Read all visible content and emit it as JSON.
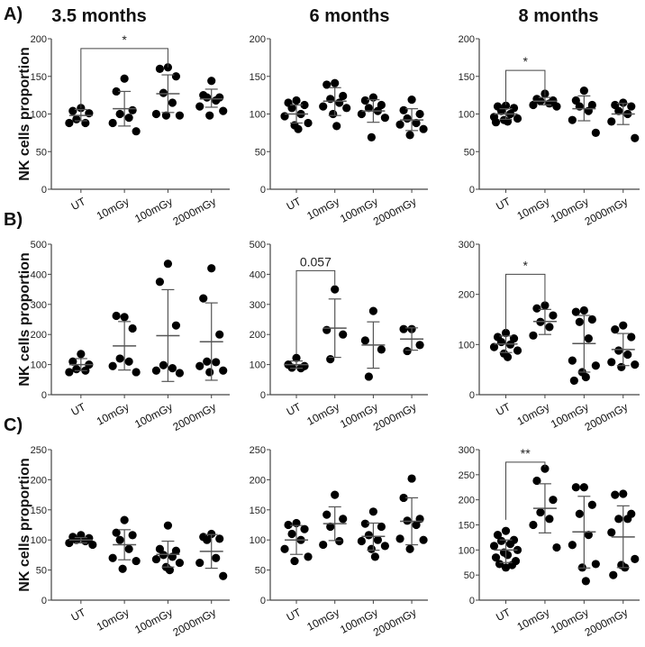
{
  "column_titles": [
    "3.5 months",
    "6 months",
    "8 months"
  ],
  "row_labels": [
    "A)",
    "B)",
    "C)"
  ],
  "ylabel": "NK cells proportion",
  "colors": {
    "dot": "#000000",
    "axis": "#444444",
    "errorbar": "#555555"
  },
  "chart_data": [
    {
      "type": "scatter",
      "panel": "A-3.5 months",
      "categories": [
        "UT",
        "10mGy",
        "100mGy",
        "2000mGy"
      ],
      "ylim": [
        0,
        200
      ],
      "yticks": [
        0,
        50,
        100,
        150,
        200
      ],
      "groups": [
        {
          "points": [
            108,
            104,
            101,
            93,
            88,
            88
          ],
          "mean": 98,
          "err": [
            91,
            106
          ]
        },
        {
          "points": [
            147,
            130,
            105,
            100,
            95,
            88,
            77
          ],
          "mean": 107,
          "err": [
            84,
            130
          ]
        },
        {
          "points": [
            162,
            160,
            150,
            128,
            115,
            100,
            98,
            98
          ],
          "mean": 127,
          "err": [
            102,
            152
          ]
        },
        {
          "points": [
            144,
            125,
            122,
            122,
            118,
            110,
            104,
            98
          ],
          "mean": 120,
          "err": [
            109,
            133
          ]
        }
      ],
      "significance": {
        "from": 0,
        "to": 2,
        "label": "*",
        "bracket_y": 187,
        "left_y": 108,
        "right_y": 162
      }
    },
    {
      "type": "scatter",
      "panel": "A-6 months",
      "categories": [
        "UT",
        "10mGy",
        "100mGy",
        "2000mGy"
      ],
      "ylim": [
        0,
        200
      ],
      "yticks": [
        0,
        50,
        100,
        150,
        200
      ],
      "groups": [
        {
          "points": [
            118,
            115,
            112,
            108,
            100,
            97,
            88,
            85,
            80
          ],
          "mean": 100,
          "err": [
            88,
            112
          ]
        },
        {
          "points": [
            141,
            139,
            124,
            120,
            115,
            110,
            108,
            100,
            84
          ],
          "mean": 117,
          "err": [
            98,
            135
          ]
        },
        {
          "points": [
            122,
            118,
            112,
            108,
            104,
            100,
            95,
            69
          ],
          "mean": 104,
          "err": [
            89,
            119
          ]
        },
        {
          "points": [
            119,
            105,
            100,
            94,
            88,
            86,
            80,
            72
          ],
          "mean": 92,
          "err": [
            78,
            107
          ]
        }
      ]
    },
    {
      "type": "scatter",
      "panel": "A-8 months",
      "categories": [
        "UT",
        "10mGy",
        "100mGy",
        "2000mGy"
      ],
      "ylim": [
        0,
        200
      ],
      "yticks": [
        0,
        50,
        100,
        150,
        200
      ],
      "groups": [
        {
          "points": [
            111,
            110,
            108,
            104,
            100,
            96,
            94,
            92,
            90,
            89
          ],
          "mean": 100,
          "err": [
            93,
            107
          ]
        },
        {
          "points": [
            127,
            120,
            118,
            117,
            114,
            112,
            110
          ],
          "mean": 117,
          "err": [
            112,
            122
          ]
        },
        {
          "points": [
            131,
            118,
            112,
            110,
            104,
            92,
            75
          ],
          "mean": 107,
          "err": [
            91,
            124
          ]
        },
        {
          "points": [
            115,
            112,
            110,
            104,
            100,
            90,
            68
          ],
          "mean": 100,
          "err": [
            86,
            114
          ]
        }
      ],
      "significance": {
        "from": 0,
        "to": 1,
        "label": "*",
        "bracket_y": 158,
        "left_y": 112,
        "right_y": 124
      }
    },
    {
      "type": "scatter",
      "panel": "B-3.5 months",
      "categories": [
        "UT",
        "10mGy",
        "100mGy",
        "2000mGy"
      ],
      "ylim": [
        0,
        500
      ],
      "yticks": [
        0,
        100,
        200,
        300,
        400,
        500
      ],
      "groups": [
        {
          "points": [
            135,
            110,
            100,
            85,
            80,
            75
          ],
          "mean": 100,
          "err": [
            80,
            120
          ]
        },
        {
          "points": [
            258,
            262,
            220,
            120,
            110,
            95,
            75
          ],
          "mean": 162,
          "err": [
            82,
            243
          ]
        },
        {
          "points": [
            435,
            375,
            230,
            98,
            88,
            80,
            72
          ],
          "mean": 196,
          "err": [
            44,
            349
          ]
        },
        {
          "points": [
            420,
            320,
            200,
            110,
            108,
            95,
            80,
            75
          ],
          "mean": 176,
          "err": [
            48,
            305
          ]
        }
      ]
    },
    {
      "type": "scatter",
      "panel": "B-6 months",
      "categories": [
        "UT",
        "10mGy",
        "100mGy",
        "2000mGy"
      ],
      "ylim": [
        0,
        500
      ],
      "yticks": [
        0,
        100,
        200,
        300,
        400,
        500
      ],
      "groups": [
        {
          "points": [
            122,
            100,
            95,
            90,
            88
          ],
          "mean": 100,
          "err": [
            88,
            112
          ]
        },
        {
          "points": [
            350,
            215,
            200,
            118
          ],
          "mean": 221,
          "err": [
            124,
            318
          ]
        },
        {
          "points": [
            278,
            180,
            150,
            60
          ],
          "mean": 165,
          "err": [
            88,
            242
          ]
        },
        {
          "points": [
            218,
            218,
            165,
            145
          ],
          "mean": 185,
          "err": [
            148,
            222
          ]
        }
      ],
      "significance": {
        "from": 0,
        "to": 1,
        "label": "0.057",
        "bracket_y": 412,
        "left_y": 135,
        "right_y": 365
      }
    },
    {
      "type": "scatter",
      "panel": "B-8 months",
      "categories": [
        "UT",
        "10mGy",
        "100mGy",
        "2000mGy"
      ],
      "ylim": [
        0,
        300
      ],
      "yticks": [
        0,
        100,
        200,
        300
      ],
      "groups": [
        {
          "points": [
            123,
            115,
            112,
            105,
            100,
            95,
            88,
            82,
            75
          ],
          "mean": 101,
          "err": [
            84,
            117
          ]
        },
        {
          "points": [
            178,
            172,
            158,
            145,
            135,
            118
          ],
          "mean": 146,
          "err": [
            120,
            170
          ]
        },
        {
          "points": [
            168,
            165,
            150,
            145,
            112,
            68,
            58,
            45,
            35,
            28
          ],
          "mean": 102,
          "err": [
            45,
            158
          ]
        },
        {
          "points": [
            138,
            130,
            115,
            88,
            80,
            65,
            60,
            55
          ],
          "mean": 90,
          "err": [
            58,
            122
          ]
        }
      ],
      "significance": {
        "from": 0,
        "to": 1,
        "label": "*",
        "bracket_y": 240,
        "left_y": 128,
        "right_y": 182
      }
    },
    {
      "type": "scatter",
      "panel": "C-3.5 months",
      "categories": [
        "UT",
        "10mGy",
        "100mGy",
        "2000mGy"
      ],
      "ylim": [
        0,
        250
      ],
      "yticks": [
        0,
        50,
        100,
        150,
        200,
        250
      ],
      "groups": [
        {
          "points": [
            108,
            105,
            103,
            100,
            98,
            95,
            92
          ],
          "mean": 100,
          "err": [
            95,
            104
          ]
        },
        {
          "points": [
            133,
            112,
            108,
            100,
            85,
            70,
            65,
            52
          ],
          "mean": 92,
          "err": [
            67,
            117
          ]
        },
        {
          "points": [
            124,
            85,
            82,
            75,
            72,
            68,
            62,
            55,
            50
          ],
          "mean": 76,
          "err": [
            55,
            98
          ]
        },
        {
          "points": [
            110,
            105,
            102,
            100,
            70,
            62,
            40
          ],
          "mean": 81,
          "err": [
            53,
            109
          ]
        }
      ]
    },
    {
      "type": "scatter",
      "panel": "C-6 months",
      "categories": [
        "UT",
        "10mGy",
        "100mGy",
        "2000mGy"
      ],
      "ylim": [
        0,
        250
      ],
      "yticks": [
        0,
        50,
        100,
        150,
        200,
        250
      ],
      "groups": [
        {
          "points": [
            128,
            125,
            118,
            110,
            100,
            85,
            72,
            65
          ],
          "mean": 100,
          "err": [
            76,
            124
          ]
        },
        {
          "points": [
            175,
            142,
            135,
            122,
            98,
            92
          ],
          "mean": 127,
          "err": [
            99,
            155
          ]
        },
        {
          "points": [
            147,
            127,
            122,
            108,
            100,
            98,
            90,
            85,
            72
          ],
          "mean": 106,
          "err": [
            83,
            128
          ]
        },
        {
          "points": [
            202,
            170,
            135,
            132,
            125,
            102,
            100,
            85
          ],
          "mean": 131,
          "err": [
            92,
            170
          ]
        }
      ]
    },
    {
      "type": "scatter",
      "panel": "C-8 months",
      "categories": [
        "UT",
        "10mGy",
        "100mGy",
        "2000mGy"
      ],
      "ylim": [
        0,
        300
      ],
      "yticks": [
        0,
        50,
        100,
        150,
        200,
        250,
        300
      ],
      "groups": [
        {
          "points": [
            138,
            130,
            120,
            118,
            112,
            108,
            100,
            95,
            90,
            85,
            78,
            72,
            70,
            65
          ],
          "mean": 100,
          "err": [
            75,
            120
          ]
        },
        {
          "points": [
            262,
            238,
            200,
            175,
            162,
            150,
            105
          ],
          "mean": 183,
          "err": [
            134,
            232
          ]
        },
        {
          "points": [
            225,
            225,
            190,
            172,
            130,
            110,
            72,
            65,
            38
          ],
          "mean": 136,
          "err": [
            64,
            207
          ]
        },
        {
          "points": [
            212,
            210,
            172,
            162,
            162,
            135,
            82,
            70,
            65,
            50
          ],
          "mean": 126,
          "err": [
            65,
            188
          ]
        }
      ],
      "significance": {
        "from": 0,
        "to": 1,
        "label": "**",
        "bracket_y": 275,
        "left_y": 160,
        "right_y": 265
      }
    }
  ]
}
